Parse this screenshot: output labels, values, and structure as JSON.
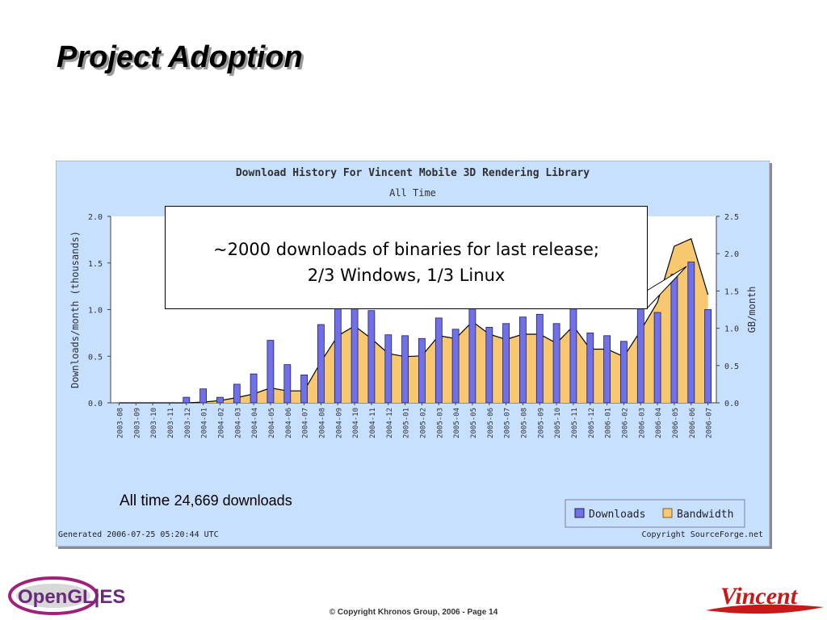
{
  "slide": {
    "title": "Project Adoption",
    "callout_line1": "~2000 downloads of binaries for last release;",
    "callout_line2": "2/3 Windows, 1/3 Linux",
    "all_time_label": "All time",
    "all_time_value": "24,669 downloads",
    "footer": "© Copyright Khronos Group, 2006 - Page 14",
    "logo_left_text": "OpenGL|ES",
    "logo_right_text": "Vincent"
  },
  "colors": {
    "downloads": "#7070e8",
    "bandwidth": "#f8c870",
    "chart_bg": "#c8e0ff",
    "plot_bg": "#ffffff"
  },
  "chart_data": {
    "type": "bar",
    "title": "Download History For Vincent Mobile 3D Rendering Library",
    "subtitle": "All Time",
    "ylabel": "Downloads/month (thousands)",
    "y2label": "GB/month",
    "ylim": [
      0,
      2.0
    ],
    "y2lim": [
      0,
      2.5
    ],
    "yticks": [
      "0.0",
      "0.5",
      "1.0",
      "1.5",
      "2.0"
    ],
    "y2ticks": [
      "0.0",
      "0.5",
      "1.0",
      "1.5",
      "2.0",
      "2.5"
    ],
    "categories": [
      "2003-08",
      "2003-09",
      "2003-10",
      "2003-11",
      "2003-12",
      "2004-01",
      "2004-02",
      "2004-03",
      "2004-04",
      "2004-05",
      "2004-06",
      "2004-07",
      "2004-08",
      "2004-09",
      "2004-10",
      "2004-11",
      "2004-12",
      "2005-01",
      "2005-02",
      "2005-03",
      "2005-04",
      "2005-05",
      "2005-06",
      "2005-07",
      "2005-08",
      "2005-09",
      "2005-10",
      "2005-11",
      "2005-12",
      "2006-01",
      "2006-02",
      "2006-03",
      "2006-04",
      "2006-05",
      "2006-06",
      "2006-07"
    ],
    "series": [
      {
        "name": "Downloads",
        "values": [
          0,
          0,
          0,
          0,
          0.06,
          0.15,
          0.06,
          0.2,
          0.31,
          0.67,
          0.41,
          0.3,
          0.84,
          1.26,
          1.34,
          0.99,
          0.73,
          0.72,
          0.69,
          0.91,
          0.79,
          1.16,
          0.81,
          0.85,
          0.92,
          0.95,
          0.85,
          1.28,
          0.75,
          0.72,
          0.66,
          1.17,
          0.97,
          1.38,
          1.51,
          1.0
        ]
      },
      {
        "name": "Bandwidth",
        "values": [
          0,
          0,
          0,
          0,
          0,
          0.01,
          0.03,
          0.07,
          0.12,
          0.2,
          0.16,
          0.16,
          0.55,
          0.9,
          1.03,
          0.86,
          0.66,
          0.62,
          0.63,
          0.9,
          0.86,
          1.09,
          0.92,
          0.85,
          0.92,
          0.92,
          0.8,
          1.03,
          0.72,
          0.72,
          0.62,
          0.97,
          1.35,
          2.1,
          2.2,
          1.45
        ]
      }
    ],
    "legend": [
      "Downloads",
      "Bandwidth"
    ],
    "legend_position": "bottom-right",
    "generated": "Generated 2006-07-25 05:20:44 UTC",
    "copyright": "Copyright SourceForge.net"
  }
}
